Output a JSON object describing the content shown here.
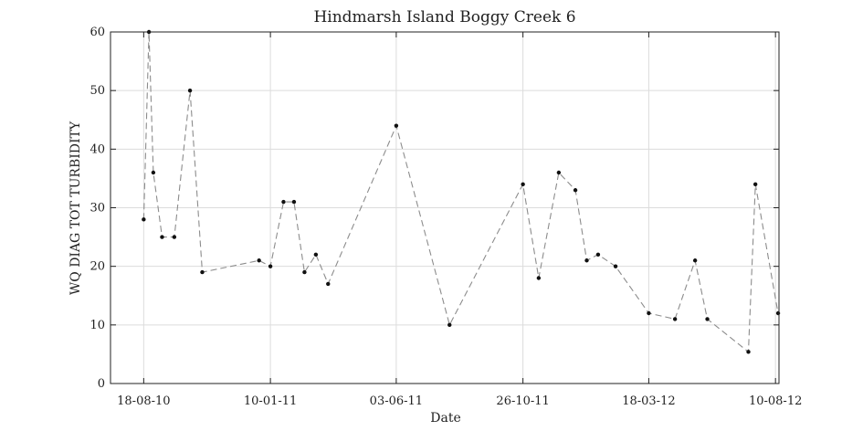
{
  "chart_data": {
    "type": "line",
    "title": "Hindmarsh Island Boggy Creek 6",
    "xlabel": "Date",
    "ylabel": "WQ DIAG TOT TURBIDITY",
    "xlim": [
      "2010-07-11",
      "2012-08-14"
    ],
    "ylim": [
      0,
      60
    ],
    "yticks": [
      0,
      10,
      20,
      30,
      40,
      50,
      60
    ],
    "xticks": [
      {
        "date": "2010-08-18",
        "label": "18-08-10"
      },
      {
        "date": "2011-01-10",
        "label": "10-01-11"
      },
      {
        "date": "2011-06-03",
        "label": "03-06-11"
      },
      {
        "date": "2011-10-26",
        "label": "26-10-11"
      },
      {
        "date": "2012-03-18",
        "label": "18-03-12"
      },
      {
        "date": "2012-08-10",
        "label": "10-08-12"
      }
    ],
    "grid": true,
    "line_style": "dashed",
    "line_color": "#8c8c8c",
    "marker_color": "#111111",
    "series": [
      {
        "x": [
          "2010-08-18",
          "2010-08-24",
          "2010-08-29",
          "2010-09-08",
          "2010-09-22",
          "2010-10-10",
          "2010-10-24",
          "2010-12-28",
          "2011-01-10",
          "2011-01-25",
          "2011-02-06",
          "2011-02-18",
          "2011-03-03",
          "2011-03-17",
          "2011-06-03",
          "2011-08-03",
          "2011-10-26",
          "2011-11-13",
          "2011-12-06",
          "2011-12-25",
          "2012-01-07",
          "2012-01-20",
          "2012-02-09",
          "2012-03-18",
          "2012-04-17",
          "2012-05-10",
          "2012-05-24",
          "2012-07-10",
          "2012-07-18",
          "2012-08-13"
        ],
        "y": [
          28,
          60,
          36,
          25,
          25,
          50,
          19,
          21,
          20,
          31,
          31,
          19,
          22,
          17,
          44,
          10,
          34,
          18,
          36,
          33,
          21,
          22,
          20,
          12,
          11,
          21,
          11,
          5.4,
          34,
          12
        ]
      }
    ]
  }
}
